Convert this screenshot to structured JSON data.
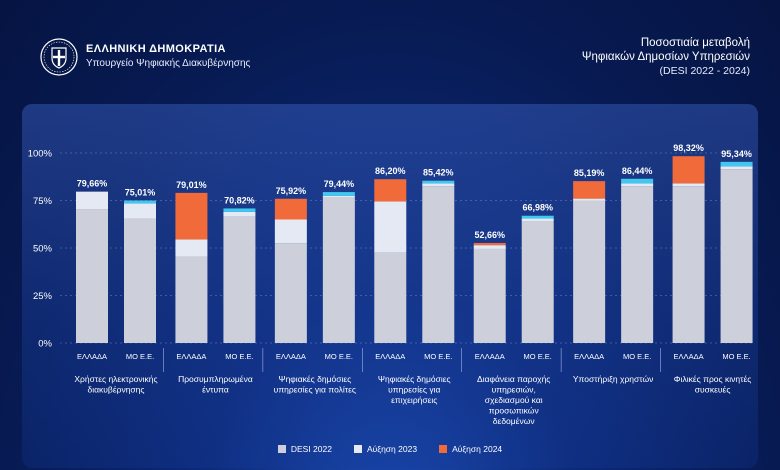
{
  "header": {
    "org_title": "ΕΛΛΗΝΙΚΗ ΔΗΜΟΚΡΑΤΙΑ",
    "org_subtitle": "Υπουργείο Ψηφιακής Διακυβέρνησης",
    "emblem_icon": "greek-coat-of-arms-icon"
  },
  "title": {
    "line1": "Ποσοστιαία μεταβολή",
    "line2": "Ψηφιακών Δημοσίων Υπηρεσιών",
    "line3": "(DESI 2022 - 2024)"
  },
  "colors": {
    "desi2022": "#cdcfdb",
    "increase2023": "#e4e9f4",
    "increase2024": "#f06a3a",
    "mo_top": "#41c8f0",
    "grid": "#8fa6dc"
  },
  "chart_data": {
    "type": "bar",
    "stacked": true,
    "ylim": [
      0,
      100
    ],
    "yticks": [
      "0%",
      "25%",
      "50%",
      "75%",
      "100%"
    ],
    "groups": [
      {
        "label": "Χρήστες ηλεκτρονικής διακυβέρνησης",
        "label_lines": [
          "Χρήστες ηλεκτρονικής",
          "διακυβέρνησης"
        ]
      },
      {
        "label": "Προσυμπληρωμένα έντυπα",
        "label_lines": [
          "Προσυμπληρωμένα",
          "έντυπα"
        ]
      },
      {
        "label": "Ψηφιακές δημόσιες υπηρεσίες για πολίτες",
        "label_lines": [
          "Ψηφιακές δημόσιες",
          "υπηρεσίες για πολίτες"
        ]
      },
      {
        "label": "Ψηφιακές δημόσιες υπηρεσίες για επιχειρήσεις",
        "label_lines": [
          "Ψηφιακές δημόσιες",
          "υπηρεσίες για",
          "επιχειρήσεις"
        ]
      },
      {
        "label": "Διαφάνεια παροχής υπηρεσιών, σχεδιασμού και προσωπικών δεδομένων",
        "label_lines": [
          "Διαφάνεια παροχής",
          "υπηρεσιών,",
          "σχεδιασμού και",
          "προσωπικών",
          "δεδομένων"
        ]
      },
      {
        "label": "Υποστήριξη χρηστών",
        "label_lines": [
          "Υποστήριξη χρηστών"
        ]
      },
      {
        "label": "Φιλικές προς κινητές συσκευές",
        "label_lines": [
          "Φιλικές προς κινητές",
          "συσκευές"
        ]
      }
    ],
    "bar_labels": [
      "ΕΛΛΑΔΑ",
      "ΜΟ Ε.Ε."
    ],
    "series": [
      {
        "name": "DESI 2022",
        "values": [
          70.5,
          65.5,
          45.5,
          66.5,
          52.5,
          76.5,
          47.5,
          82.5,
          49.5,
          64.0,
          75.0,
          82.5,
          82.5,
          91.5
        ]
      },
      {
        "name": "Αύξηση 2023",
        "values": [
          9.16,
          8.0,
          9.0,
          2.5,
          12.5,
          1.0,
          27.0,
          1.5,
          2.0,
          1.5,
          1.0,
          1.5,
          1.5,
          1.5
        ]
      },
      {
        "name": "Αύξηση 2024",
        "values": [
          0,
          1.51,
          24.51,
          1.82,
          10.92,
          1.94,
          11.7,
          1.42,
          1.16,
          1.48,
          9.19,
          2.44,
          14.32,
          2.34
        ]
      }
    ],
    "totals_labels": [
      "79,66%",
      "75,01%",
      "79,01%",
      "70,82%",
      "75,92%",
      "79,44%",
      "86,20%",
      "85,42%",
      "52,66%",
      "66,98%",
      "85,19%",
      "86,44%",
      "98,32%",
      "95,34%"
    ],
    "legend_position": "bottom-center",
    "grid": true
  },
  "legend": [
    {
      "label": "DESI 2022",
      "color": "#cdcfdb"
    },
    {
      "label": "Αύξηση 2023",
      "color": "#e4e9f4"
    },
    {
      "label": "Αύξηση 2024",
      "color": "#f06a3a"
    }
  ]
}
